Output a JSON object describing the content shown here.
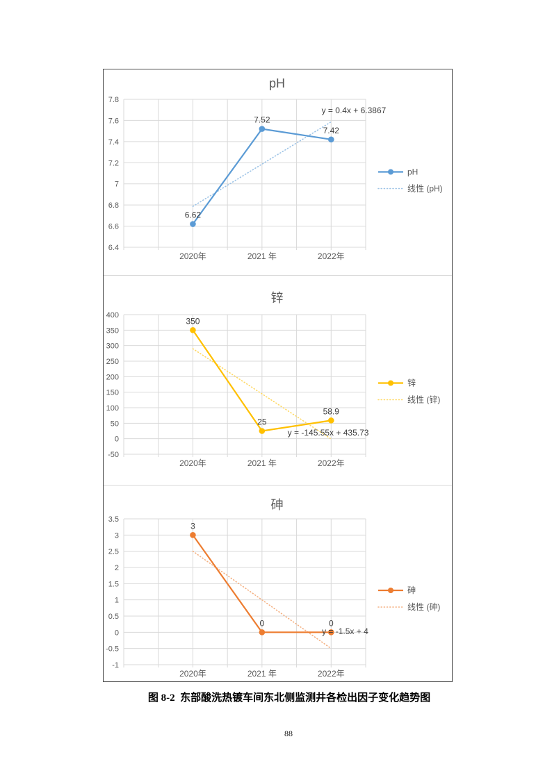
{
  "page": {
    "caption": "图 8-2  东部酸洗热镀车间东北侧监测井各检出因子变化趋势图",
    "page_number": "88"
  },
  "chart_data": [
    {
      "id": "ph",
      "type": "line",
      "title": "pH",
      "categories": [
        "2020年",
        "2021 年",
        "2022年"
      ],
      "series": [
        {
          "name": "pH",
          "values": [
            6.62,
            7.52,
            7.42
          ],
          "labels": [
            "6.62",
            "7.52",
            "7.42"
          ],
          "color": "#5B9BD5"
        }
      ],
      "trendline": {
        "name": "线性 (pH)",
        "equation": "y = 0.4x + 6.3867",
        "slope": 0.4,
        "intercept": 6.3867,
        "color": "#9DC3E6"
      },
      "ylim": [
        6.4,
        7.8
      ],
      "yticks": [
        "7.8",
        "7.6",
        "7.4",
        "7.2",
        "7",
        "6.8",
        "6.6",
        "6.4"
      ],
      "grid": true,
      "legend_position": "right",
      "legend": [
        "pH",
        "线性 (pH)"
      ]
    },
    {
      "id": "zinc",
      "type": "line",
      "title": "锌",
      "categories": [
        "2020年",
        "2021 年",
        "2022年"
      ],
      "series": [
        {
          "name": "锌",
          "values": [
            350,
            25,
            58.9
          ],
          "labels": [
            "350",
            "25",
            "58.9"
          ],
          "color": "#FFC000"
        }
      ],
      "trendline": {
        "name": "线性 (锌)",
        "equation": "y = -145.55x + 435.73",
        "slope": -145.55,
        "intercept": 435.73,
        "color": "#FFD966"
      },
      "ylim": [
        -50,
        400
      ],
      "yticks": [
        "400",
        "350",
        "300",
        "250",
        "200",
        "150",
        "100",
        "50",
        "0",
        "-50"
      ],
      "grid": true,
      "legend_position": "right",
      "legend": [
        "锌",
        "线性 (锌)"
      ]
    },
    {
      "id": "arsenic",
      "type": "line",
      "title": "砷",
      "categories": [
        "2020年",
        "2021 年",
        "2022年"
      ],
      "series": [
        {
          "name": "砷",
          "values": [
            3,
            0,
            0
          ],
          "labels": [
            "3",
            "0",
            "0"
          ],
          "color": "#ED7D31"
        }
      ],
      "trendline": {
        "name": "线性 (砷)",
        "equation": "y = -1.5x + 4",
        "slope": -1.5,
        "intercept": 4,
        "color": "#F4B183"
      },
      "ylim": [
        -1,
        3.5
      ],
      "yticks": [
        "3.5",
        "3",
        "2.5",
        "2",
        "1.5",
        "1",
        "0.5",
        "0",
        "-0.5",
        "-1"
      ],
      "grid": true,
      "legend_position": "right",
      "legend": [
        "砷",
        "线性 (砷)"
      ]
    }
  ]
}
